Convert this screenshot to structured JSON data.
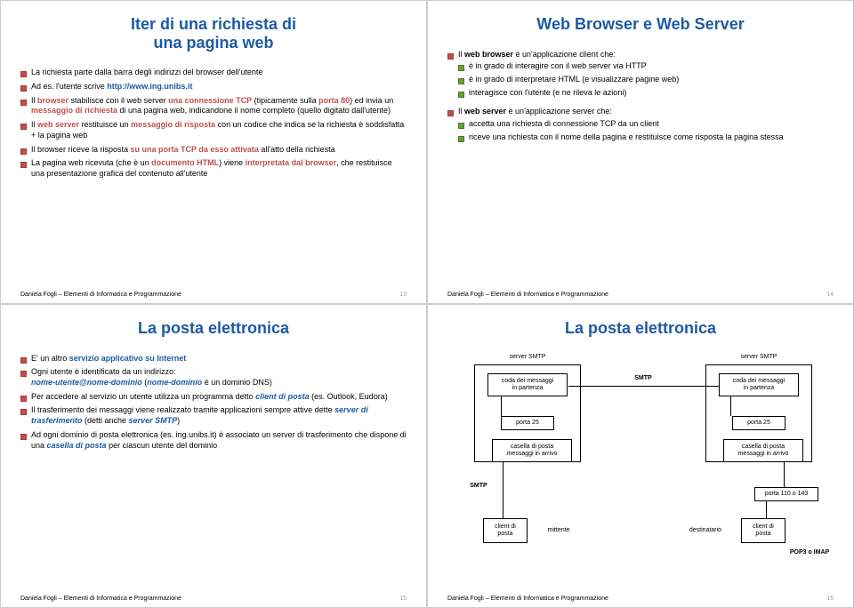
{
  "footer_author": "Daniela Fogli – Elementi di Informatica e Programmazione",
  "slide1": {
    "title": "Iter di una richiesta di\nuna pagina web",
    "page": "13",
    "items": [
      "La richiesta parte dalla barra degli indirizzi del browser dell'utente",
      "Ad es. l'utente scrive |b-blue|http://www.ing.unibs.it|",
      "Il |b-red|browser| stabilisce con il web server |b-red|una connessione TCP| (tipicamente sulla |b-red|porta 80|) ed invia un |b-red|messaggio di richiesta| di una pagina web, indicandone il nome completo (quello digitato dall'utente)",
      "Il |b-red|web server| restituisce un |b-red|messaggio di risposta| con un codice che indica se la richiesta è soddisfatta + la pagina web",
      "Il browser riceve la risposta |b-red|su una porta TCP da esso attivata| all'atto della richiesta",
      "La pagina web ricevuta (che è un |b-red|documento HTML|) viene |b-red|interpretata dal browser|, che restituisce una presentazione grafica del contenuto all'utente"
    ]
  },
  "slide2": {
    "title": "Web Browser e Web Server",
    "page": "14",
    "group1_lead": "Il |b|web browser| è un'applicazione client che:",
    "group1_sub": [
      "è in grado di interagire con il web server via HTTP",
      "è in grado di interpretare HTML (e visualizzare pagine web)",
      "interagisce con l'utente (e ne rileva le azioni)"
    ],
    "group2_lead": "Il |b|web server| è un'applicazione server che:",
    "group2_sub": [
      "accetta una richiesta di connessione TCP da un client",
      "riceve una richiesta con il nome della pagina e restituisce come risposta la pagina stessa"
    ]
  },
  "slide3": {
    "title": "La posta elettronica",
    "page": "15",
    "items": [
      "E' un altro |b-navy|servizio applicativo su Internet|",
      "Ogni utente è identificato da un indirizzo:\n|i-navy|nome-utente@nome-dominio|   (|i-navy|nome-dominio| è un dominio DNS)",
      "Per accedere al servizio un utente utilizza un programma detto |i-navy|client di posta| (es. Outlook, Eudora)",
      "Il trasferimento dei messaggi viene realizzato tramite applicazioni sempre attive dette |i-navy|server di trasferimento| (detti anche |i-navy|server SMTP|)",
      "Ad ogni dominio di posta elettronica (es. ing.unibs.it) è associato un server di trasferimento che dispone di una |i-navy|casella di posta| per ciascun utente del dominio"
    ]
  },
  "slide4": {
    "title": "La posta elettronica",
    "page": "16",
    "labels": {
      "server_smtp": "server SMTP",
      "queue": "coda dei messaggi\nin partenza",
      "port25": "porta 25",
      "mailbox": "casella di posta\nmessaggi in arrivo",
      "client": "client di\nposta",
      "sender": "mittente",
      "recipient": "destinatario",
      "smtp": "SMTP",
      "port110": "porta 110 o 143",
      "pop": "POP3 o IMAP"
    }
  }
}
